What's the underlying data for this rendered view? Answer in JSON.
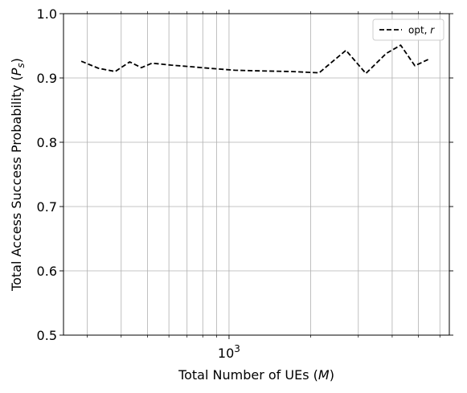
{
  "chart_data": {
    "type": "line",
    "title": "",
    "xlabel": "Total Number of UEs ($M$)",
    "ylabel": "Total Access Success Probability ($P_s$)",
    "xscale": "log",
    "xlim": [
      245,
      6500
    ],
    "ylim": [
      0.5,
      1.0
    ],
    "y_ticks": [
      0.5,
      0.6,
      0.7,
      0.8,
      0.9,
      1.0
    ],
    "y_tick_labels": [
      "0.5",
      "0.6",
      "0.7",
      "0.8",
      "0.9",
      "1.0"
    ],
    "x_ticks_major": [
      1000
    ],
    "x_tick_labels_major": [
      "$10^3$"
    ],
    "x_ticks_minor": [
      300,
      400,
      500,
      600,
      700,
      800,
      900,
      2000,
      3000,
      4000,
      5000,
      6000
    ],
    "grid": true,
    "legend_position": "top-right",
    "series": [
      {
        "name": "opt, $r$",
        "color": "#000000",
        "linestyle": "dashed",
        "x": [
          285,
          330,
          380,
          430,
          475,
          520,
          610,
          700,
          850,
          1050,
          1300,
          1700,
          2150,
          2700,
          3200,
          3800,
          4300,
          4850,
          5450
        ],
        "y": [
          0.926,
          0.915,
          0.91,
          0.925,
          0.916,
          0.923,
          0.92,
          0.918,
          0.915,
          0.912,
          0.911,
          0.91,
          0.908,
          0.943,
          0.907,
          0.938,
          0.951,
          0.919,
          0.929
        ]
      }
    ]
  }
}
